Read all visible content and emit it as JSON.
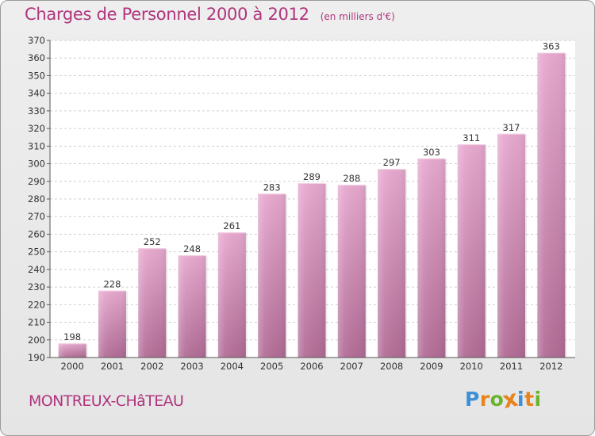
{
  "title": "Charges de Personnel 2000 à 2012",
  "unit_note": "(en milliers d'€)",
  "city": "MONTREUX-CHâTEAU",
  "logo": {
    "text": "Proxiti",
    "colors": [
      "#3d8fd6",
      "#e8841e",
      "#6ab42d",
      "#e8841e",
      "#3d8fd6",
      "#e8841e",
      "#6ab42d"
    ]
  },
  "colors": {
    "accent": "#b0357d",
    "bar_top": "#e7a9cf",
    "bar_bottom": "#b26d96"
  },
  "chart_data": {
    "type": "bar",
    "categories": [
      "2000",
      "2001",
      "2002",
      "2003",
      "2004",
      "2005",
      "2006",
      "2007",
      "2008",
      "2009",
      "2010",
      "2011",
      "2012"
    ],
    "values": [
      198,
      228,
      252,
      248,
      261,
      283,
      289,
      288,
      297,
      303,
      311,
      317,
      363
    ],
    "title": "Charges de Personnel 2000 à 2012",
    "ylim": [
      190,
      370
    ],
    "yticks": [
      190,
      200,
      210,
      220,
      230,
      240,
      250,
      260,
      270,
      280,
      290,
      300,
      310,
      320,
      330,
      340,
      350,
      360,
      370
    ],
    "grid": true
  }
}
